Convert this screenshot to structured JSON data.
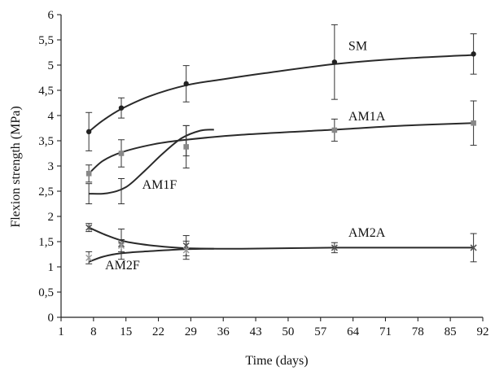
{
  "chart_data": {
    "type": "scatter",
    "title": "",
    "xlabel": "Time (days)",
    "ylabel": "Flexion strength (MPa)",
    "xlim": [
      1,
      92
    ],
    "ylim": [
      0,
      6
    ],
    "x_ticks": [
      "1",
      "8",
      "15",
      "22",
      "29",
      "36",
      "43",
      "50",
      "57",
      "64",
      "71",
      "78",
      "85",
      "92"
    ],
    "y_ticks": [
      "0",
      "0,5",
      "1",
      "1,5",
      "2",
      "2,5",
      "3",
      "3,5",
      "4",
      "4,5",
      "5",
      "5,5",
      "6"
    ],
    "grid": false,
    "legend": "none",
    "series": [
      {
        "name": "SM",
        "marker": "circle",
        "color": "#222222",
        "points": [
          {
            "x": 7,
            "y": 3.68,
            "err": 0.38
          },
          {
            "x": 14,
            "y": 4.15,
            "err": 0.2
          },
          {
            "x": 28,
            "y": 4.63,
            "err": 0.36
          },
          {
            "x": 60,
            "y": 5.06,
            "err": 0.74
          },
          {
            "x": 90,
            "y": 5.22,
            "err": 0.4
          }
        ],
        "curve": [
          [
            7,
            3.68
          ],
          [
            10,
            3.9
          ],
          [
            14,
            4.13
          ],
          [
            20,
            4.38
          ],
          [
            28,
            4.6
          ],
          [
            36,
            4.72
          ],
          [
            45,
            4.84
          ],
          [
            60,
            5.02
          ],
          [
            75,
            5.13
          ],
          [
            90,
            5.2
          ]
        ]
      },
      {
        "name": "AM1A",
        "marker": "square",
        "color": "#888888",
        "points": [
          {
            "x": 7,
            "y": 2.85,
            "err": 0.17
          },
          {
            "x": 14,
            "y": 3.25,
            "err": 0.27
          },
          {
            "x": 28,
            "y": 3.38,
            "err": 0.42
          },
          {
            "x": 60,
            "y": 3.71,
            "err": 0.22
          },
          {
            "x": 90,
            "y": 3.85,
            "err": 0.44
          }
        ],
        "curve": [
          [
            7,
            2.85
          ],
          [
            10,
            3.1
          ],
          [
            14,
            3.27
          ],
          [
            21,
            3.43
          ],
          [
            28,
            3.52
          ],
          [
            40,
            3.62
          ],
          [
            60,
            3.72
          ],
          [
            75,
            3.8
          ],
          [
            90,
            3.85
          ]
        ]
      },
      {
        "name": "AM1F",
        "marker": "none",
        "color": "#222222",
        "points": [
          {
            "x": 7,
            "y": 2.45,
            "err": 0.2
          },
          {
            "x": 14,
            "y": 2.5,
            "err": 0.25
          },
          {
            "x": 28,
            "y": 3.5,
            "err": 0.3
          }
        ],
        "curve": [
          [
            7,
            2.45
          ],
          [
            11,
            2.46
          ],
          [
            15,
            2.58
          ],
          [
            19,
            2.9
          ],
          [
            23,
            3.25
          ],
          [
            27,
            3.55
          ],
          [
            31,
            3.7
          ],
          [
            34,
            3.72
          ]
        ]
      },
      {
        "name": "AM2A",
        "marker": "cross",
        "color": "#555555",
        "points": [
          {
            "x": 7,
            "y": 1.78,
            "err": 0.08
          },
          {
            "x": 14,
            "y": 1.45,
            "err": 0.3
          },
          {
            "x": 28,
            "y": 1.42,
            "err": 0.2
          },
          {
            "x": 60,
            "y": 1.38,
            "err": 0.1
          },
          {
            "x": 90,
            "y": 1.38,
            "err": 0.28
          }
        ],
        "curve": [
          [
            7,
            1.78
          ],
          [
            11,
            1.62
          ],
          [
            15,
            1.5
          ],
          [
            21,
            1.42
          ],
          [
            28,
            1.37
          ],
          [
            40,
            1.36
          ],
          [
            60,
            1.38
          ],
          [
            75,
            1.38
          ],
          [
            90,
            1.38
          ]
        ]
      },
      {
        "name": "AM2F",
        "marker": "star",
        "color": "#999999",
        "points": [
          {
            "x": 7,
            "y": 1.18,
            "err": 0.12
          },
          {
            "x": 14,
            "y": 1.42,
            "err": 0.12
          },
          {
            "x": 28,
            "y": 1.33,
            "err": 0.18
          }
        ],
        "curve": [
          [
            7,
            1.1
          ],
          [
            10,
            1.2
          ],
          [
            14,
            1.27
          ],
          [
            20,
            1.31
          ],
          [
            28,
            1.35
          ],
          [
            34,
            1.36
          ]
        ]
      }
    ],
    "labels": [
      {
        "series": "SM",
        "text": "SM",
        "x": 63,
        "y": 5.3
      },
      {
        "series": "AM1A",
        "text": "AM1A",
        "x": 63,
        "y": 3.9
      },
      {
        "series": "AM1F",
        "text": "AM1F",
        "x": 18.5,
        "y": 2.55
      },
      {
        "series": "AM2A",
        "text": "AM2A",
        "x": 63,
        "y": 1.6
      },
      {
        "series": "AM2F",
        "text": "AM2F",
        "x": 10.5,
        "y": 0.95
      }
    ]
  }
}
